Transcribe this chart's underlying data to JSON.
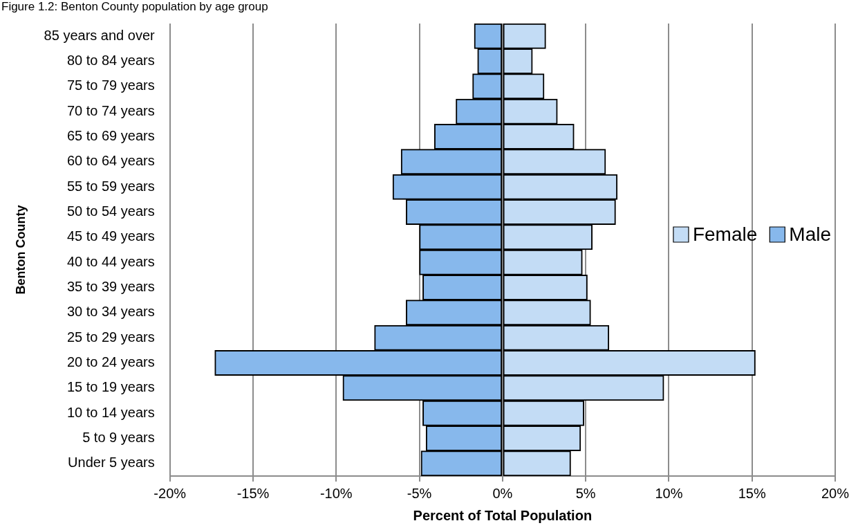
{
  "chart_data": {
    "type": "bar",
    "orientation": "horizontal",
    "stacked": true,
    "title": "Figure 1.2: Benton County population by age group",
    "xlabel": "Percent of Total Population",
    "ylabel": "Benton County",
    "categories": [
      "85 years and over",
      "80 to 84 years",
      "75 to 79 years",
      "70 to 74 years",
      "65 to 69 years",
      "60 to 64 years",
      "55 to 59 years",
      "50 to 54 years",
      "45 to 49 years",
      "40 to 44 years",
      "35 to 39 years",
      "30 to 34 years",
      "25 to 29 years",
      "20 to 24 years",
      "15 to 19 years",
      "10 to 14 years",
      "5 to 9 years",
      "Under 5 years"
    ],
    "series": [
      {
        "name": "Female",
        "color": "#c3dcf5",
        "values": [
          2.6,
          1.8,
          2.5,
          3.3,
          4.3,
          6.2,
          6.9,
          6.8,
          5.4,
          4.8,
          5.1,
          5.3,
          6.4,
          15.2,
          9.7,
          4.9,
          4.7,
          4.1
        ]
      },
      {
        "name": "Male",
        "color": "#87b8ec",
        "values": [
          -1.7,
          -1.5,
          -1.8,
          -2.8,
          -4.1,
          -6.1,
          -6.6,
          -5.8,
          -5.0,
          -5.0,
          -4.8,
          -5.8,
          -7.7,
          -17.3,
          -9.6,
          -4.8,
          -4.6,
          -4.9
        ]
      }
    ],
    "xlim": [
      -20,
      20
    ],
    "xticks": [
      {
        "value": -20,
        "label": "-20%"
      },
      {
        "value": -15,
        "label": "-15%"
      },
      {
        "value": -10,
        "label": "-10%"
      },
      {
        "value": -5,
        "label": "-5%"
      },
      {
        "value": 0,
        "label": "0%"
      },
      {
        "value": 5,
        "label": "5%"
      },
      {
        "value": 10,
        "label": "10%"
      },
      {
        "value": 15,
        "label": "15%"
      },
      {
        "value": 20,
        "label": "20%"
      }
    ],
    "grid": "x",
    "legend": "right"
  }
}
